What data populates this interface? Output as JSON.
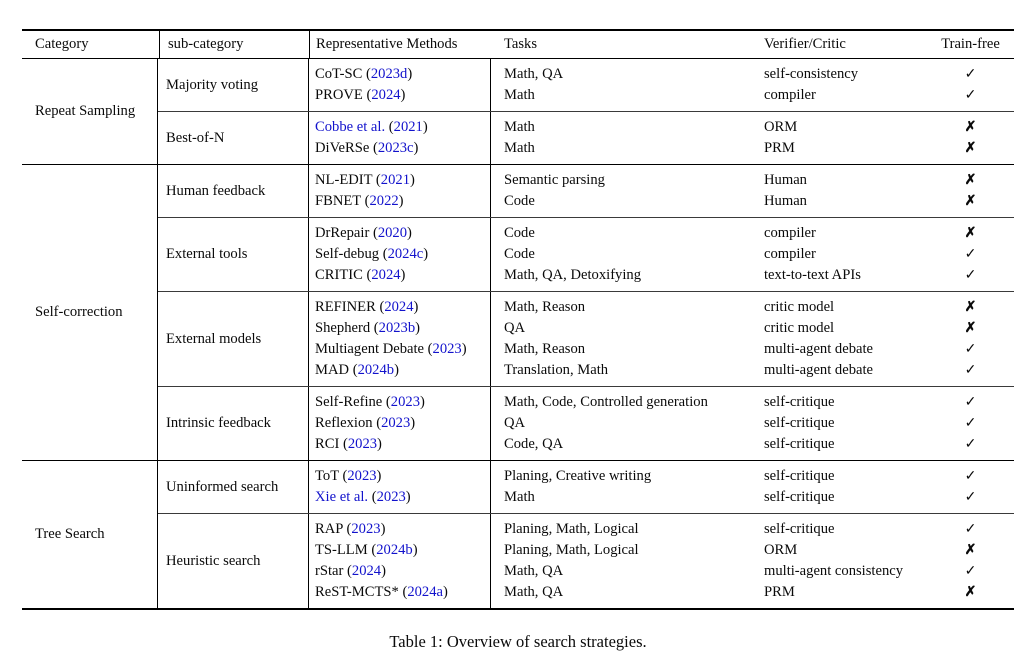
{
  "table": {
    "caption": "Table 1: Overview of search strategies.",
    "columns": [
      "Category",
      "sub-category",
      "Representative Methods",
      "Tasks",
      "Verifier/Critic",
      "Train-free"
    ],
    "marks": {
      "yes": "✓",
      "no": "✗"
    },
    "citation_color": "#1212cc",
    "sections": [
      {
        "category": "Repeat Sampling",
        "subsections": [
          {
            "name": "Majority voting",
            "rows": [
              {
                "method": "CoT-SC",
                "cite": "2023d",
                "method_blue": false,
                "tasks": "Math, QA",
                "verifier": "self-consistency",
                "train_free": "yes"
              },
              {
                "method": "PROVE",
                "cite": "2024",
                "method_blue": false,
                "tasks": "Math",
                "verifier": "compiler",
                "train_free": "yes"
              }
            ]
          },
          {
            "name": "Best-of-N",
            "rows": [
              {
                "method": "Cobbe et al.",
                "cite": "2021",
                "method_blue": true,
                "tasks": "Math",
                "verifier": "ORM",
                "train_free": "no"
              },
              {
                "method": "DiVeRSe",
                "cite": "2023c",
                "method_blue": false,
                "tasks": "Math",
                "verifier": "PRM",
                "train_free": "no"
              }
            ]
          }
        ]
      },
      {
        "category": "Self-correction",
        "subsections": [
          {
            "name": "Human feedback",
            "rows": [
              {
                "method": "NL-EDIT",
                "cite": "2021",
                "method_blue": false,
                "tasks": "Semantic parsing",
                "verifier": "Human",
                "train_free": "no"
              },
              {
                "method": "FBNET",
                "cite": "2022",
                "method_blue": false,
                "tasks": "Code",
                "verifier": "Human",
                "train_free": "no"
              }
            ]
          },
          {
            "name": "External tools",
            "rows": [
              {
                "method": "DrRepair",
                "cite": "2020",
                "method_blue": false,
                "tasks": "Code",
                "verifier": "compiler",
                "train_free": "no"
              },
              {
                "method": "Self-debug",
                "cite": "2024c",
                "method_blue": false,
                "tasks": "Code",
                "verifier": "compiler",
                "train_free": "yes"
              },
              {
                "method": "CRITIC",
                "cite": "2024",
                "method_blue": false,
                "tasks": "Math, QA, Detoxifying",
                "verifier": "text-to-text APIs",
                "train_free": "yes"
              }
            ]
          },
          {
            "name": "External models",
            "rows": [
              {
                "method": "REFINER",
                "cite": "2024",
                "method_blue": false,
                "tasks": "Math, Reason",
                "verifier": "critic model",
                "train_free": "no"
              },
              {
                "method": "Shepherd",
                "cite": "2023b",
                "method_blue": false,
                "tasks": "QA",
                "verifier": "critic model",
                "train_free": "no"
              },
              {
                "method": "Multiagent Debate",
                "cite": "2023",
                "method_blue": false,
                "tasks": "Math, Reason",
                "verifier": "multi-agent debate",
                "train_free": "yes"
              },
              {
                "method": "MAD",
                "cite": "2024b",
                "method_blue": false,
                "tasks": "Translation, Math",
                "verifier": "multi-agent debate",
                "train_free": "yes"
              }
            ]
          },
          {
            "name": "Intrinsic feedback",
            "rows": [
              {
                "method": "Self-Refine",
                "cite": "2023",
                "method_blue": false,
                "tasks": "Math, Code, Controlled generation",
                "verifier": "self-critique",
                "train_free": "yes"
              },
              {
                "method": "Reflexion",
                "cite": "2023",
                "method_blue": false,
                "tasks": "QA",
                "verifier": "self-critique",
                "train_free": "yes"
              },
              {
                "method": "RCI",
                "cite": "2023",
                "method_blue": false,
                "tasks": "Code, QA",
                "verifier": "self-critique",
                "train_free": "yes"
              }
            ]
          }
        ]
      },
      {
        "category": "Tree Search",
        "subsections": [
          {
            "name": "Uninformed search",
            "rows": [
              {
                "method": "ToT",
                "cite": "2023",
                "method_blue": false,
                "tasks": "Planing, Creative writing",
                "verifier": "self-critique",
                "train_free": "yes"
              },
              {
                "method": "Xie et al.",
                "cite": "2023",
                "method_blue": true,
                "tasks": "Math",
                "verifier": "self-critique",
                "train_free": "yes"
              }
            ]
          },
          {
            "name": "Heuristic search",
            "rows": [
              {
                "method": "RAP",
                "cite": "2023",
                "method_blue": false,
                "tasks": "Planing, Math, Logical",
                "verifier": "self-critique",
                "train_free": "yes"
              },
              {
                "method": "TS-LLM",
                "cite": "2024b",
                "method_blue": false,
                "tasks": "Planing, Math, Logical",
                "verifier": "ORM",
                "train_free": "no"
              },
              {
                "method": "rStar",
                "cite": "2024",
                "method_blue": false,
                "tasks": "Math, QA",
                "verifier": "multi-agent consistency",
                "train_free": "yes"
              },
              {
                "method": "ReST-MCTS*",
                "cite": "2024a",
                "method_blue": false,
                "tasks": "Math, QA",
                "verifier": "PRM",
                "train_free": "no"
              }
            ]
          }
        ]
      }
    ]
  }
}
